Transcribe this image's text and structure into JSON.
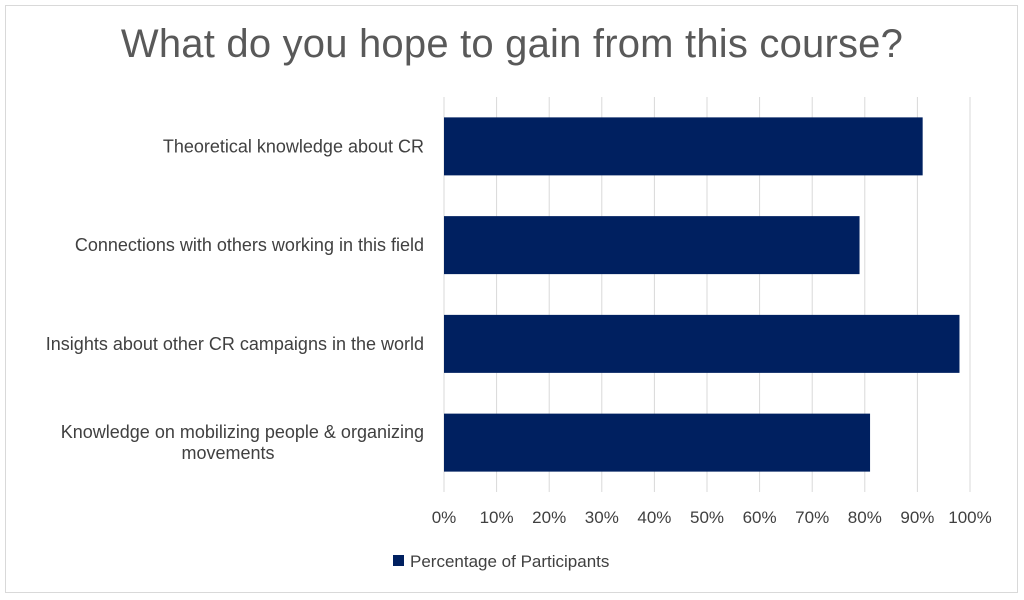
{
  "chart_data": {
    "type": "bar",
    "orientation": "horizontal",
    "title": "What do you hope to gain from this course?",
    "categories": [
      [
        "Theoretical knowledge about CR"
      ],
      [
        "Connections with others working in this field"
      ],
      [
        "Insights about other CR campaigns in the world"
      ],
      [
        "Knowledge on mobilizing people & organizing",
        "movements"
      ]
    ],
    "series": [
      {
        "name": "Percentage of Participants",
        "values": [
          91,
          79,
          98,
          81
        ],
        "color": "#002060"
      }
    ],
    "xlim": [
      0,
      100
    ],
    "xticks": [
      "0%",
      "10%",
      "20%",
      "30%",
      "40%",
      "50%",
      "60%",
      "70%",
      "80%",
      "90%",
      "100%"
    ],
    "grid": true,
    "legend_position": "bottom"
  }
}
